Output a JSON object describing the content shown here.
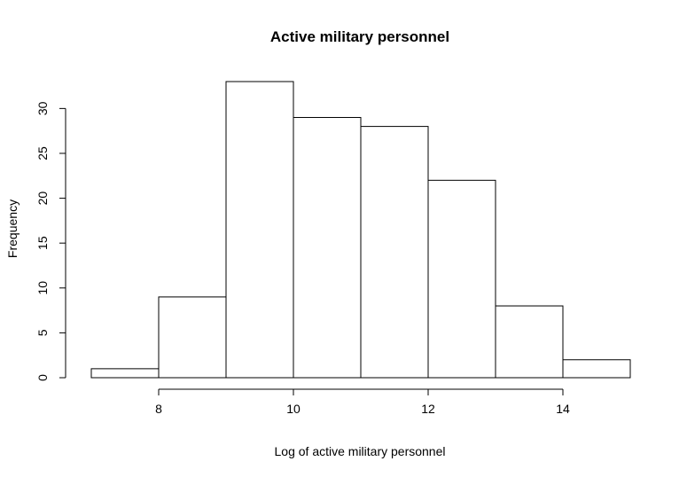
{
  "chart_data": {
    "type": "bar",
    "title": "Active military personnel",
    "xlabel": "Log of active military personnel",
    "ylabel": "Frequency",
    "bins": [
      {
        "x0": 7,
        "x1": 8,
        "count": 1
      },
      {
        "x0": 8,
        "x1": 9,
        "count": 9
      },
      {
        "x0": 9,
        "x1": 10,
        "count": 33
      },
      {
        "x0": 10,
        "x1": 11,
        "count": 29
      },
      {
        "x0": 11,
        "x1": 12,
        "count": 28
      },
      {
        "x0": 12,
        "x1": 13,
        "count": 22
      },
      {
        "x0": 13,
        "x1": 14,
        "count": 8
      },
      {
        "x0": 14,
        "x1": 15,
        "count": 2
      }
    ],
    "x_ticks": [
      8,
      10,
      12,
      14
    ],
    "y_ticks": [
      0,
      5,
      10,
      15,
      20,
      25,
      30
    ],
    "xlim": [
      7,
      15
    ],
    "ylim": [
      0,
      33
    ],
    "grid": false,
    "bar_fill": "#ffffff",
    "bar_stroke": "#000000"
  }
}
